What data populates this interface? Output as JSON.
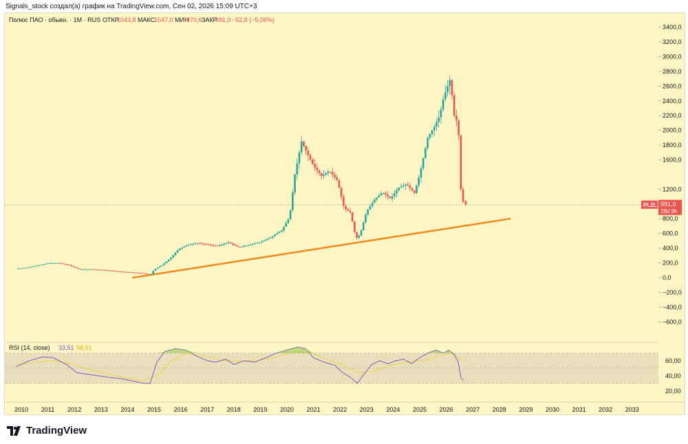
{
  "header": {
    "note": "Signals_stock создал(а) график на TradingView.com, Сен 02, 2026 15:09 UTC+3"
  },
  "legend": {
    "title": "Полюс ПАО · обыкн. · 1М · RUS",
    "open_label": "ОТКР",
    "open": "1043,8",
    "high_label": "МАКС",
    "high": "1047,0",
    "low_label": "МИН",
    "low": "970,6",
    "close_label": "ЗАКР",
    "close": "991,0",
    "change": "−52,8 (−5,06%)"
  },
  "price_tag": {
    "ticker": "PLZL",
    "price": "991,0",
    "countdown": "28d 9h"
  },
  "rsi": {
    "label": "RSI (14, close)",
    "value": "33,51",
    "ma_value": "58,51"
  },
  "footer": {
    "brand": "TradingView"
  },
  "colors": {
    "up": "#26a69a",
    "down": "#ef5350",
    "trendline": "#f08a1c",
    "rsi_line": "#7e57c2",
    "rsi_ma": "#f4d03f",
    "background": "#fdf6c4"
  },
  "chart_data": [
    {
      "type": "candlestick",
      "title": "Полюс ПАО · обыкн. · 1М · RUS",
      "x_axis": {
        "labels": [
          "2010",
          "2011",
          "2012",
          "2013",
          "2014",
          "2015",
          "2016",
          "2017",
          "2018",
          "2019",
          "2020",
          "2021",
          "2022",
          "2023",
          "2024",
          "2025",
          "2026",
          "2027",
          "2028",
          "2029",
          "2030",
          "2031",
          "2032",
          "2033"
        ]
      },
      "y_axis": {
        "ticks": [
          "3400,0",
          "3200,0",
          "3000,0",
          "2800,0",
          "2600,0",
          "2400,0",
          "2200,0",
          "2000,0",
          "1800,0",
          "1600,0",
          "1200,0",
          "800,0",
          "600,0",
          "400,0",
          "200,0",
          "0,0",
          "−200,0",
          "−400,0",
          "−600,0"
        ],
        "range": [
          -700,
          3480
        ]
      },
      "price_series": [
        [
          2009.8,
          120
        ],
        [
          2010.2,
          135
        ],
        [
          2010.6,
          165
        ],
        [
          2011.0,
          195
        ],
        [
          2011.4,
          200
        ],
        [
          2011.8,
          170
        ],
        [
          2012.2,
          110
        ],
        [
          2012.6,
          115
        ],
        [
          2013.0,
          105
        ],
        [
          2013.4,
          95
        ],
        [
          2013.8,
          80
        ],
        [
          2014.2,
          70
        ],
        [
          2014.6,
          60
        ],
        [
          2014.85,
          30
        ],
        [
          2015.0,
          110
        ],
        [
          2015.3,
          170
        ],
        [
          2015.6,
          260
        ],
        [
          2015.9,
          380
        ],
        [
          2016.2,
          440
        ],
        [
          2016.6,
          470
        ],
        [
          2017.0,
          450
        ],
        [
          2017.4,
          430
        ],
        [
          2017.8,
          480
        ],
        [
          2018.2,
          410
        ],
        [
          2018.6,
          450
        ],
        [
          2019.0,
          480
        ],
        [
          2019.4,
          550
        ],
        [
          2019.8,
          640
        ],
        [
          2020.1,
          820
        ],
        [
          2020.3,
          1400
        ],
        [
          2020.55,
          1850
        ],
        [
          2020.75,
          1700
        ],
        [
          2021.0,
          1520
        ],
        [
          2021.3,
          1380
        ],
        [
          2021.6,
          1450
        ],
        [
          2021.9,
          1320
        ],
        [
          2022.15,
          950
        ],
        [
          2022.4,
          880
        ],
        [
          2022.6,
          530
        ],
        [
          2022.75,
          580
        ],
        [
          2023.0,
          900
        ],
        [
          2023.3,
          1060
        ],
        [
          2023.6,
          1160
        ],
        [
          2023.9,
          1070
        ],
        [
          2024.2,
          1220
        ],
        [
          2024.5,
          1270
        ],
        [
          2024.8,
          1150
        ],
        [
          2025.0,
          1400
        ],
        [
          2025.3,
          1900
        ],
        [
          2025.55,
          2050
        ],
        [
          2025.75,
          2200
        ],
        [
          2025.9,
          2450
        ],
        [
          2026.05,
          2600
        ],
        [
          2026.15,
          2700
        ],
        [
          2026.3,
          2200
        ],
        [
          2026.45,
          2080
        ],
        [
          2026.55,
          1200
        ],
        [
          2026.65,
          991
        ]
      ],
      "trendline": {
        "from": [
          2014.2,
          0
        ],
        "to": [
          2028.4,
          800
        ]
      },
      "last_price": 991.0
    },
    {
      "type": "line",
      "title": "RSI (14, close)",
      "y_axis": {
        "ticks": [
          "60,00",
          "40,00",
          "20,00"
        ],
        "range": [
          8,
          78
        ]
      },
      "bands": [
        70,
        50,
        30
      ],
      "series": [
        {
          "values": [
            [
              2009.8,
              52
            ],
            [
              2010.3,
              60
            ],
            [
              2010.8,
              65
            ],
            [
              2011.2,
              64
            ],
            [
              2011.7,
              55
            ],
            [
              2012.1,
              44
            ],
            [
              2012.5,
              42
            ],
            [
              2012.9,
              40
            ],
            [
              2013.3,
              38
            ],
            [
              2013.8,
              36
            ],
            [
              2014.2,
              33
            ],
            [
              2014.6,
              30
            ],
            [
              2014.85,
              30
            ],
            [
              2015.1,
              58
            ],
            [
              2015.4,
              72
            ],
            [
              2015.8,
              76
            ],
            [
              2016.2,
              74
            ],
            [
              2016.6,
              66
            ],
            [
              2017.0,
              60
            ],
            [
              2017.3,
              58
            ],
            [
              2017.7,
              62
            ],
            [
              2018.0,
              55
            ],
            [
              2018.4,
              60
            ],
            [
              2018.8,
              58
            ],
            [
              2019.2,
              64
            ],
            [
              2019.6,
              70
            ],
            [
              2020.0,
              74
            ],
            [
              2020.4,
              78
            ],
            [
              2020.7,
              76
            ],
            [
              2021.0,
              64
            ],
            [
              2021.4,
              58
            ],
            [
              2021.8,
              54
            ],
            [
              2022.1,
              44
            ],
            [
              2022.4,
              38
            ],
            [
              2022.65,
              30
            ],
            [
              2022.9,
              42
            ],
            [
              2023.2,
              55
            ],
            [
              2023.5,
              60
            ],
            [
              2023.8,
              56
            ],
            [
              2024.1,
              60
            ],
            [
              2024.4,
              62
            ],
            [
              2024.7,
              56
            ],
            [
              2025.0,
              64
            ],
            [
              2025.3,
              70
            ],
            [
              2025.6,
              74
            ],
            [
              2025.9,
              70
            ],
            [
              2026.1,
              74
            ],
            [
              2026.3,
              68
            ],
            [
              2026.45,
              58
            ],
            [
              2026.55,
              38
            ],
            [
              2026.65,
              33.51
            ]
          ]
        },
        {
          "values": [
            [
              2009.8,
              55
            ],
            [
              2010.5,
              58
            ],
            [
              2011.2,
              60
            ],
            [
              2011.9,
              56
            ],
            [
              2012.6,
              48
            ],
            [
              2013.3,
              42
            ],
            [
              2014.0,
              37
            ],
            [
              2014.6,
              33
            ],
            [
              2015.1,
              40
            ],
            [
              2015.6,
              58
            ],
            [
              2016.2,
              70
            ],
            [
              2016.9,
              66
            ],
            [
              2017.6,
              60
            ],
            [
              2018.3,
              59
            ],
            [
              2019.0,
              61
            ],
            [
              2019.7,
              66
            ],
            [
              2020.3,
              72
            ],
            [
              2020.9,
              70
            ],
            [
              2021.5,
              62
            ],
            [
              2022.1,
              54
            ],
            [
              2022.7,
              44
            ],
            [
              2023.3,
              46
            ],
            [
              2023.9,
              54
            ],
            [
              2024.5,
              58
            ],
            [
              2025.1,
              60
            ],
            [
              2025.7,
              66
            ],
            [
              2026.2,
              70
            ],
            [
              2026.65,
              58.51
            ]
          ]
        }
      ]
    }
  ]
}
